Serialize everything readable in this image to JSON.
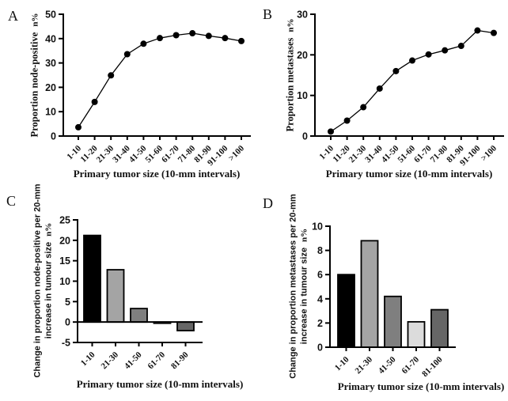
{
  "chart_data": [
    {
      "panel": "A",
      "type": "line",
      "y_title": "Proportion node-positive",
      "y_title_suffix": "n%",
      "x_title": "Primary tumor size (10-mm intervals)",
      "categories": [
        "1-10",
        "11-20",
        "21-30",
        "31-40",
        "41-50",
        "51-60",
        "61-70",
        "71-80",
        "81-90",
        "91-100",
        ">100"
      ],
      "values": [
        3.6,
        14.0,
        24.9,
        33.6,
        37.9,
        40.2,
        41.4,
        42.2,
        41.1,
        40.2,
        39.0
      ],
      "ylim": [
        0,
        50
      ],
      "yticks": [
        0,
        10,
        20,
        30,
        40,
        50
      ],
      "line_color": "#000000",
      "marker": "circle",
      "grid": false
    },
    {
      "panel": "B",
      "type": "line",
      "y_title": "Proportion metastases",
      "y_title_suffix": "n%",
      "x_title": "Primary tumor size (10-mm intervals)",
      "categories": [
        "1-10",
        "11-20",
        "21-30",
        "31-40",
        "41-50",
        "51-60",
        "61-70",
        "71-80",
        "81-90",
        "91-100",
        ">100"
      ],
      "values": [
        1.1,
        3.8,
        7.1,
        11.7,
        16.0,
        18.6,
        20.1,
        21.1,
        22.2,
        26.0,
        25.4
      ],
      "ylim": [
        0,
        30
      ],
      "yticks": [
        0,
        10,
        20,
        30
      ],
      "line_color": "#000000",
      "marker": "circle",
      "grid": false
    },
    {
      "panel": "C",
      "type": "bar",
      "y_title_line1": "Change in proportion node-positive per 20-mm",
      "y_title_line2": "increase in tumour size",
      "y_title_suffix": "n%",
      "x_title": "Primary tumor size (10-mm intervals)",
      "categories": [
        "1-10",
        "21-30",
        "41-50",
        "61-70",
        "81-90"
      ],
      "values": [
        21.2,
        12.8,
        3.3,
        -0.3,
        -2.1
      ],
      "bar_colors": [
        "#000000",
        "#a4a4a4",
        "#7f7f7f",
        "#dcdcdc",
        "#666666"
      ],
      "ylim": [
        -5,
        25
      ],
      "yticks": [
        -5,
        0,
        5,
        10,
        15,
        20,
        25
      ],
      "grid": false
    },
    {
      "panel": "D",
      "type": "bar",
      "y_title_line1": "Change in proportion metastases per 20-mm",
      "y_title_line2": "increase in tumour size",
      "y_title_suffix": "n%",
      "x_title": "Primary tumor size (10-mm intervals)",
      "categories": [
        "1-10",
        "21-30",
        "41-50",
        "61-70",
        "81-100"
      ],
      "values": [
        6.0,
        8.8,
        4.2,
        2.1,
        3.1
      ],
      "bar_colors": [
        "#000000",
        "#a4a4a4",
        "#7f7f7f",
        "#dcdcdc",
        "#666666"
      ],
      "ylim": [
        0,
        10
      ],
      "yticks": [
        0,
        2,
        4,
        6,
        8,
        10
      ],
      "grid": false
    }
  ]
}
